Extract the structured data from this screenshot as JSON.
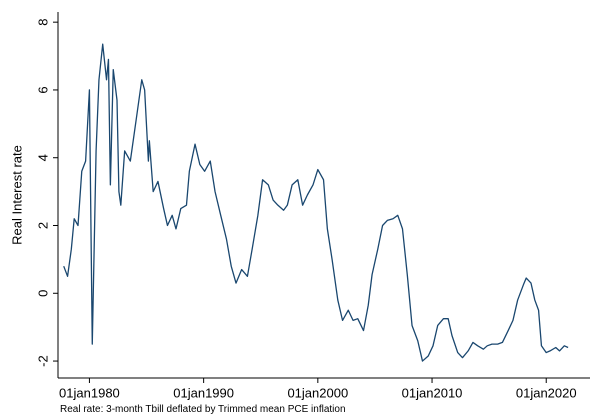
{
  "chart_data": {
    "type": "line",
    "ylabel": "Real Interest rate",
    "note": "Real rate: 3-month Tbill deflated by Trimmed mean PCE inflation",
    "x": [
      "1977-10-01",
      "1978-02-01",
      "1978-06-01",
      "1978-09-01",
      "1979-01-01",
      "1979-05-01",
      "1979-09-01",
      "1980-01-01",
      "1980-04-01",
      "1980-08-01",
      "1980-11-01",
      "1981-03-01",
      "1981-07-01",
      "1981-09-01",
      "1981-11-01",
      "1982-02-01",
      "1982-06-01",
      "1982-08-01",
      "1982-10-01",
      "1983-02-01",
      "1983-08-01",
      "1984-02-01",
      "1984-08-01",
      "1984-11-01",
      "1985-03-01",
      "1985-04-01",
      "1985-08-01",
      "1986-01-01",
      "1986-07-01",
      "1986-11-01",
      "1987-04-01",
      "1987-08-01",
      "1988-01-01",
      "1988-07-01",
      "1988-10-01",
      "1989-04-01",
      "1989-09-01",
      "1990-02-01",
      "1990-08-01",
      "1991-01-01",
      "1991-07-01",
      "1992-01-01",
      "1992-06-01",
      "1992-11-01",
      "1993-05-01",
      "1993-11-01",
      "1994-04-01",
      "1994-10-01",
      "1995-03-01",
      "1995-09-01",
      "1996-02-01",
      "1996-07-01",
      "1997-01-01",
      "1997-05-01",
      "1997-10-01",
      "1998-04-01",
      "1998-09-01",
      "1999-02-01",
      "1999-08-01",
      "2000-01-01",
      "2000-07-01",
      "2000-11-01",
      "2001-04-01",
      "2001-10-01",
      "2002-03-01",
      "2002-09-01",
      "2003-02-01",
      "2003-07-01",
      "2004-01-01",
      "2004-06-01",
      "2004-10-01",
      "2005-04-01",
      "2005-09-01",
      "2006-02-01",
      "2006-08-01",
      "2007-01-01",
      "2007-06-01",
      "2007-11-01",
      "2008-04-01",
      "2008-10-01",
      "2009-03-01",
      "2009-09-01",
      "2010-02-01",
      "2010-07-01",
      "2011-01-01",
      "2011-06-01",
      "2011-10-01",
      "2012-04-01",
      "2012-09-01",
      "2013-03-01",
      "2013-08-01",
      "2014-01-01",
      "2014-07-01",
      "2014-11-01",
      "2015-04-01",
      "2015-10-01",
      "2016-03-01",
      "2016-09-01",
      "2017-02-01",
      "2017-07-01",
      "2018-01-01",
      "2018-04-01",
      "2018-09-01",
      "2019-01-01",
      "2019-05-01",
      "2019-08-01",
      "2020-01-01",
      "2020-05-01",
      "2020-11-01",
      "2021-03-01",
      "2021-08-01",
      "2021-12-01"
    ],
    "series": [
      {
        "color": "#1a476f",
        "values": [
          0.8,
          0.5,
          1.3,
          2.2,
          2.0,
          3.6,
          3.9,
          6.0,
          -1.5,
          4.2,
          6.3,
          7.35,
          6.3,
          6.9,
          3.2,
          6.6,
          5.7,
          3.0,
          2.6,
          4.2,
          3.9,
          5.1,
          6.3,
          6.0,
          3.9,
          4.5,
          3.0,
          3.3,
          2.5,
          2.0,
          2.3,
          1.9,
          2.5,
          2.6,
          3.6,
          4.4,
          3.8,
          3.6,
          3.9,
          3.0,
          2.3,
          1.6,
          0.8,
          0.3,
          0.7,
          0.5,
          1.3,
          2.3,
          3.35,
          3.2,
          2.75,
          2.6,
          2.45,
          2.6,
          3.2,
          3.35,
          2.6,
          2.9,
          3.2,
          3.65,
          3.35,
          1.9,
          1.0,
          -0.2,
          -0.8,
          -0.5,
          -0.8,
          -0.75,
          -1.1,
          -0.35,
          0.55,
          1.3,
          2.0,
          2.15,
          2.2,
          2.3,
          1.9,
          0.55,
          -0.95,
          -1.4,
          -2.0,
          -1.85,
          -1.55,
          -0.95,
          -0.75,
          -0.75,
          -1.25,
          -1.75,
          -1.9,
          -1.7,
          -1.45,
          -1.55,
          -1.65,
          -1.55,
          -1.5,
          -1.5,
          -1.45,
          -1.1,
          -0.8,
          -0.2,
          0.25,
          0.45,
          0.3,
          -0.2,
          -0.5,
          -1.55,
          -1.75,
          -1.7,
          -1.6,
          -1.7,
          -1.55,
          -1.6
        ]
      }
    ],
    "xlim": [
      "1977-04-01",
      "2023-11-01"
    ],
    "xticks": [
      {
        "value": "1980-01-01",
        "label": "01jan1980"
      },
      {
        "value": "1990-01-01",
        "label": "01jan1990"
      },
      {
        "value": "2000-01-01",
        "label": "01jan2000"
      },
      {
        "value": "2010-01-01",
        "label": "01jan2010"
      },
      {
        "value": "2020-01-01",
        "label": "01jan2020"
      }
    ],
    "ylim": [
      -2.5,
      8.3
    ],
    "yticks": [
      -2,
      0,
      2,
      4,
      6,
      8
    ],
    "grid": false
  }
}
